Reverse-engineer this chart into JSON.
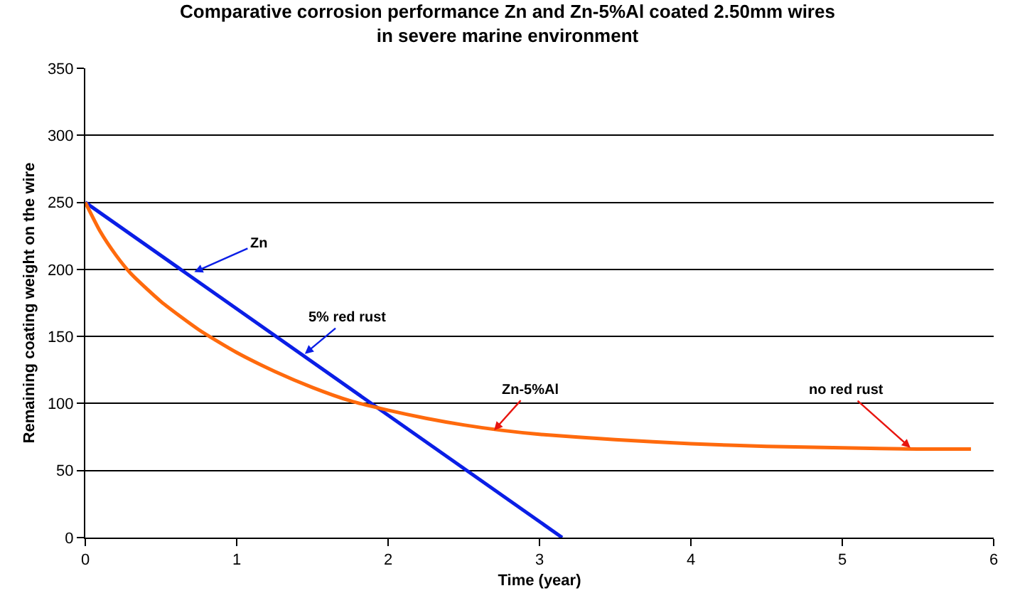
{
  "chart_data": {
    "type": "line",
    "title": "Comparative corrosion performance Zn and Zn-5%Al coated 2.50mm wires\nin severe marine environment",
    "xlabel": "Time (year)",
    "ylabel": "Remaining coating weight on the wire",
    "series": [
      {
        "color": "#0a1ee6",
        "x": [
          0,
          3.15
        ],
        "values": [
          250,
          0
        ]
      },
      {
        "color": "#ff6a0d",
        "x": [
          0,
          0.1,
          0.2,
          0.3,
          0.5,
          0.75,
          1,
          1.25,
          1.5,
          1.75,
          2,
          2.25,
          2.5,
          2.75,
          3,
          3.5,
          4,
          4.5,
          5,
          5.5,
          5.85
        ],
        "values": [
          250,
          228,
          211,
          197,
          176,
          155,
          138,
          124,
          112,
          102,
          95,
          89,
          84,
          80,
          77,
          73,
          70,
          68,
          67,
          66,
          66
        ]
      }
    ],
    "xlim": [
      0,
      6
    ],
    "xticks": [
      0,
      1,
      2,
      3,
      4,
      5,
      6
    ],
    "ylim": [
      0,
      350
    ],
    "yticks": [
      0,
      50,
      100,
      150,
      200,
      250,
      300,
      350
    ],
    "grid": "y",
    "marker": "none",
    "line_style": "solid",
    "annotations": [
      {
        "text": "Zn",
        "x": 0.72,
        "y": 198
      },
      {
        "text": "5% red rust",
        "x": 1.45,
        "y": 137
      },
      {
        "text": "Zn-5%Al",
        "x": 2.7,
        "y": 80
      },
      {
        "text": "no red rust",
        "x": 5.45,
        "y": 67
      }
    ]
  }
}
